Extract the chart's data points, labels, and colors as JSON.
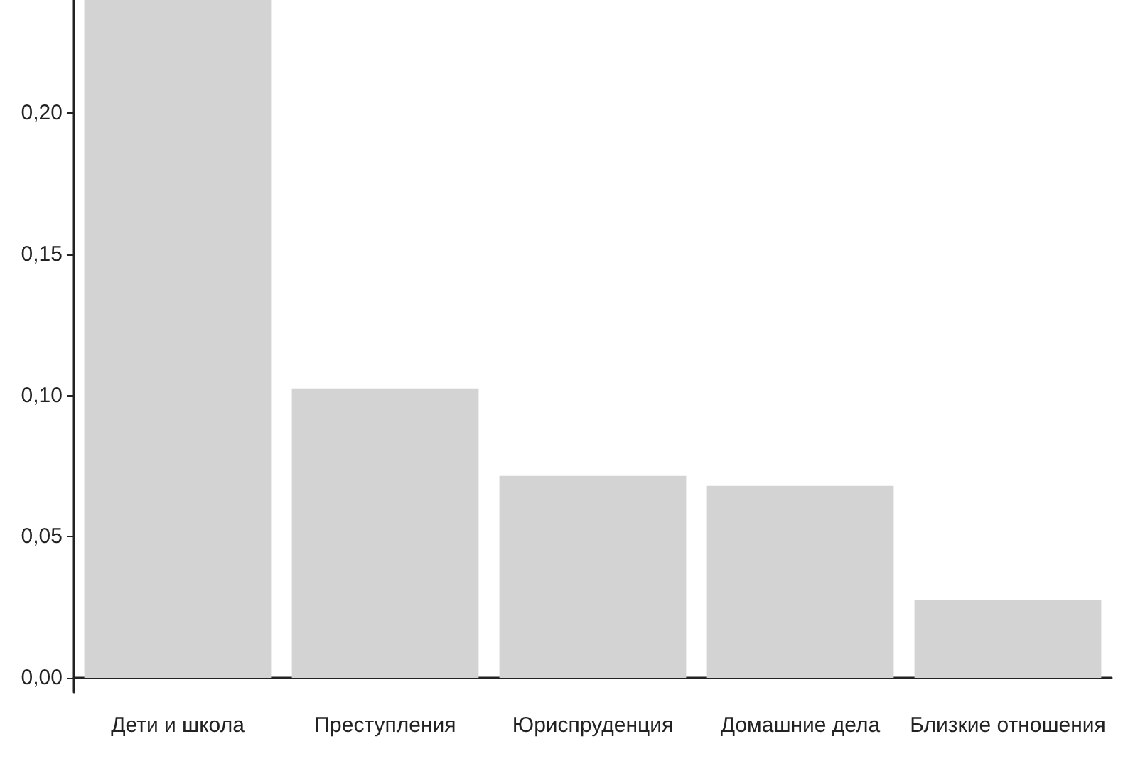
{
  "chart_data": {
    "type": "bar",
    "categories": [
      "Дети и школа",
      "Преступления",
      "Юриспруденция",
      "Домашние дела",
      "Близкие отношения"
    ],
    "values": [
      0.24,
      0.1025,
      0.0715,
      0.068,
      0.0275
    ],
    "color": "#d3d3d3",
    "ylim": [
      -0.005,
      0.24
    ],
    "yticks": [
      {
        "value": 0,
        "label": "0,00"
      },
      {
        "value": 0.05,
        "label": "0,05"
      },
      {
        "value": 0.1,
        "label": "0,10"
      },
      {
        "value": 0.15,
        "label": "0,15"
      },
      {
        "value": 0.2,
        "label": "0,20"
      }
    ],
    "grid": false
  }
}
